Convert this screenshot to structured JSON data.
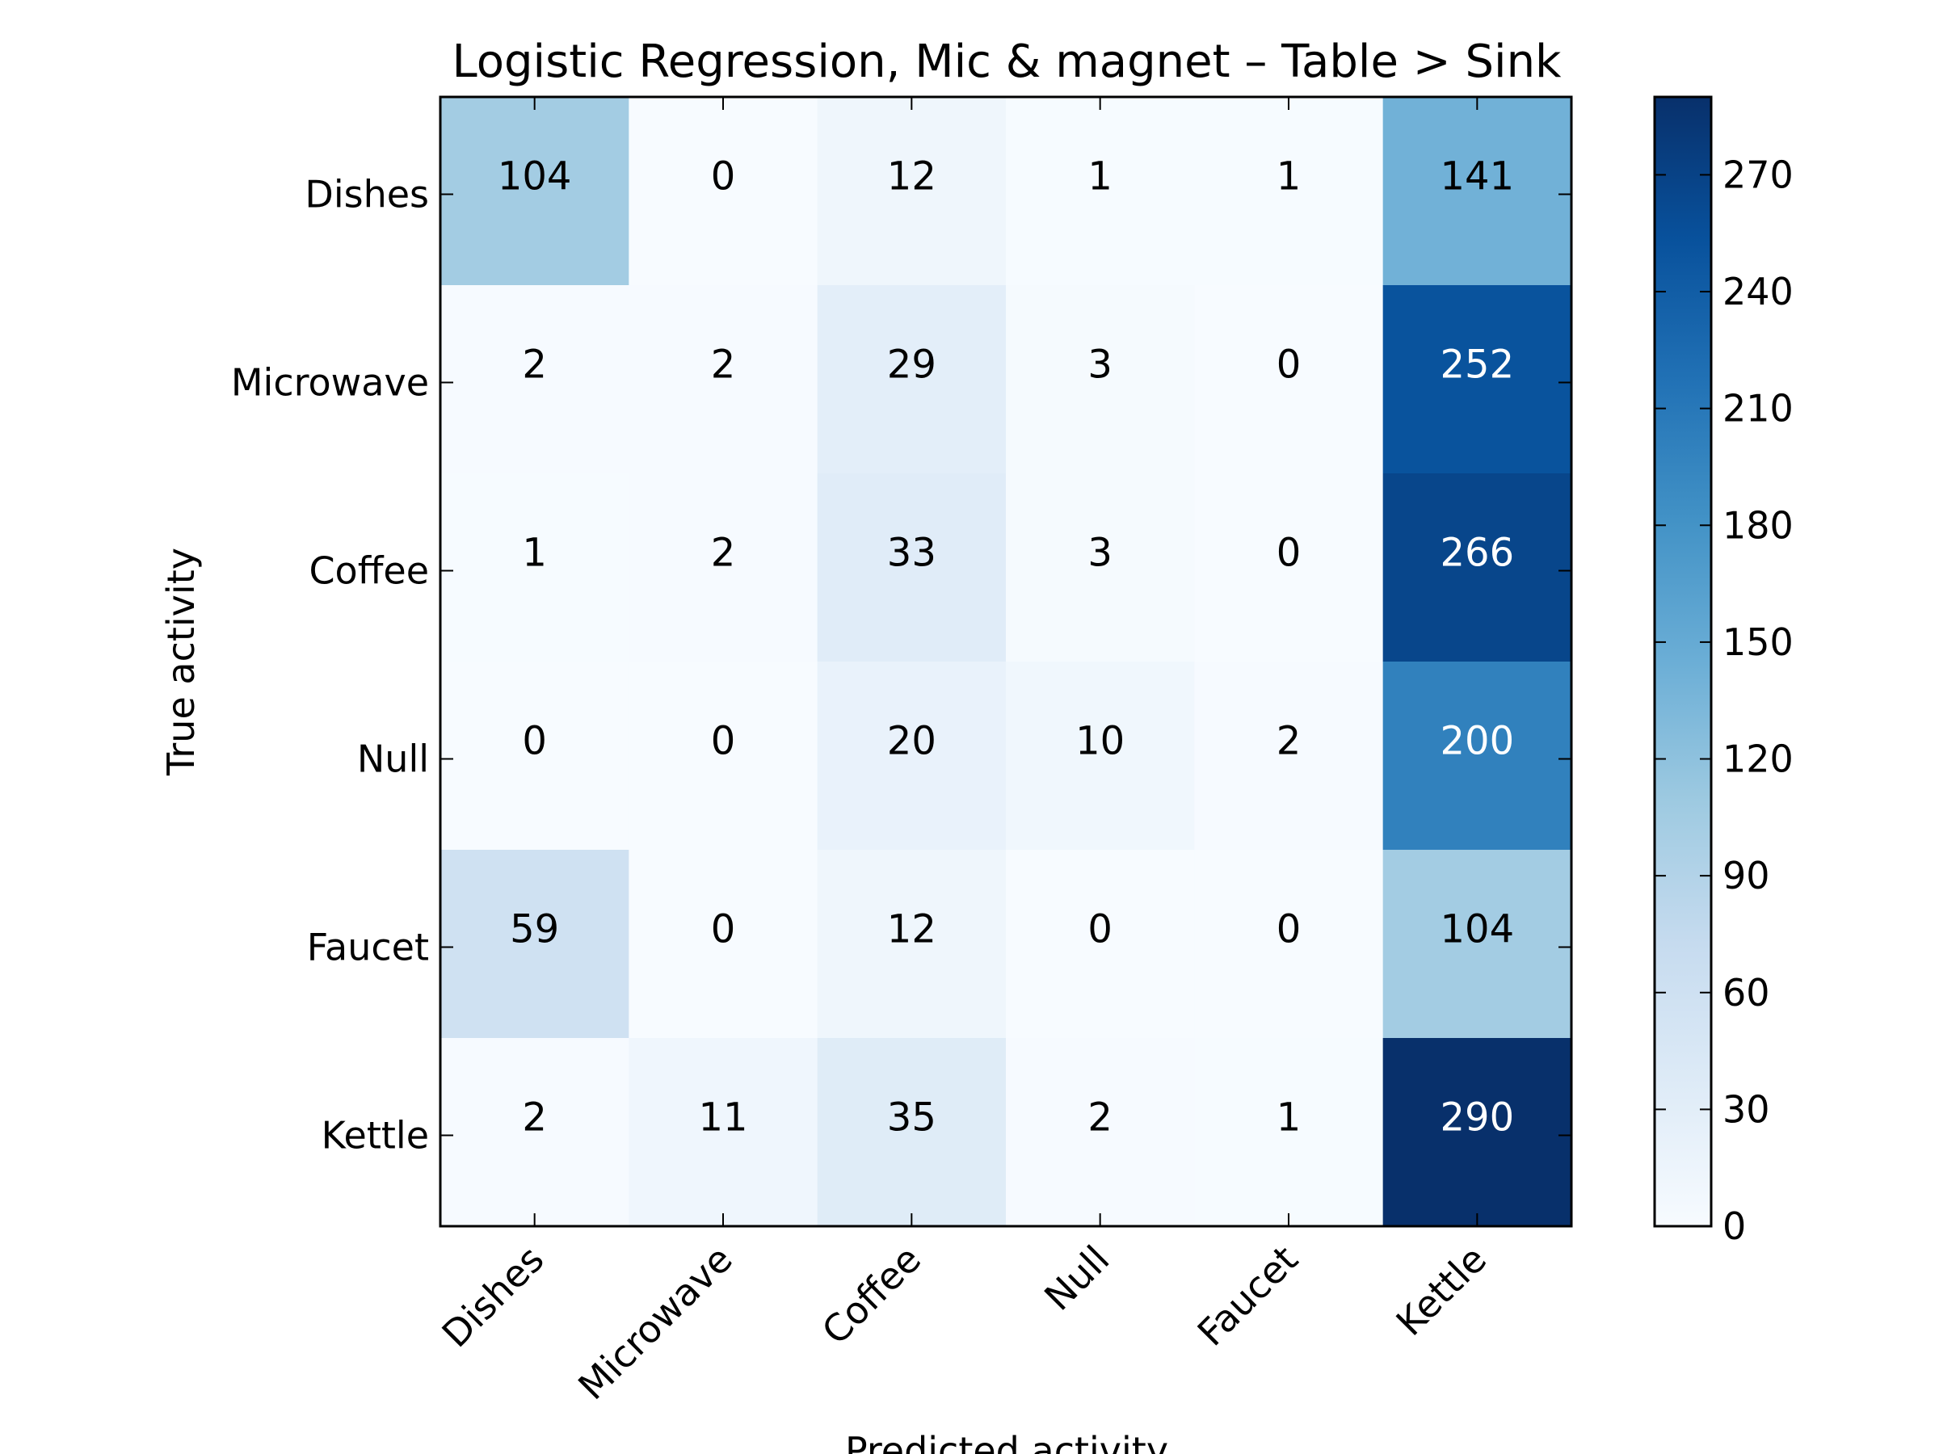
{
  "chart_data": {
    "type": "heatmap",
    "title": "Logistic Regression, Mic & magnet – Table > Sink",
    "xlabel": "Predicted activity",
    "ylabel": "True activity",
    "x_categories": [
      "Dishes",
      "Microwave",
      "Coffee",
      "Null",
      "Faucet",
      "Kettle"
    ],
    "y_categories": [
      "Dishes",
      "Microwave",
      "Coffee",
      "Null",
      "Faucet",
      "Kettle"
    ],
    "values": [
      [
        104,
        0,
        12,
        1,
        1,
        141
      ],
      [
        2,
        2,
        29,
        3,
        0,
        252
      ],
      [
        1,
        2,
        33,
        3,
        0,
        266
      ],
      [
        0,
        0,
        20,
        10,
        2,
        200
      ],
      [
        59,
        0,
        12,
        0,
        0,
        104
      ],
      [
        2,
        11,
        35,
        2,
        1,
        290
      ]
    ],
    "colormap": "Blues",
    "colormap_stops": [
      "#f7fbff",
      "#deebf7",
      "#c6dbef",
      "#9ecae1",
      "#6baed6",
      "#4292c6",
      "#2171b5",
      "#08519c",
      "#08306b"
    ],
    "value_range": [
      0,
      290
    ],
    "colorbar_ticks": [
      0,
      30,
      60,
      90,
      120,
      150,
      180,
      210,
      240,
      270
    ]
  }
}
